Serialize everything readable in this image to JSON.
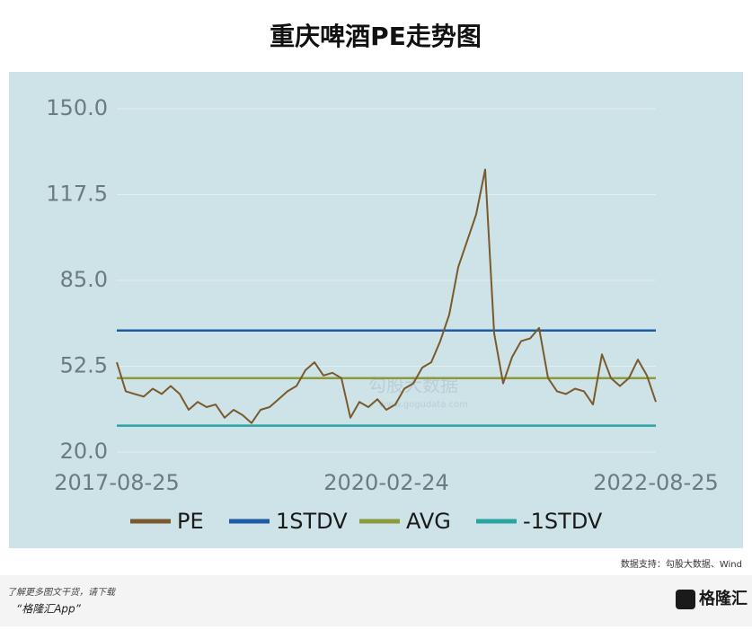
{
  "chart_data": {
    "type": "line",
    "title": "重庆啤酒PE走势图",
    "categories": [
      "2017-08-25",
      null,
      null,
      null,
      null,
      null,
      null,
      null,
      null,
      null,
      null,
      null,
      null,
      null,
      null,
      null,
      null,
      null,
      null,
      null,
      null,
      null,
      null,
      null,
      null,
      null,
      null,
      null,
      null,
      null,
      "2020-02-24",
      null,
      null,
      null,
      null,
      null,
      null,
      null,
      null,
      null,
      null,
      null,
      null,
      null,
      null,
      null,
      null,
      null,
      null,
      null,
      null,
      null,
      null,
      null,
      null,
      null,
      null,
      null,
      null,
      null,
      "2022-08-25"
    ],
    "series": [
      {
        "name": "PE",
        "color": "#7a5a2c",
        "values": [
          54,
          43,
          42,
          41,
          44,
          42,
          45,
          42,
          36,
          39,
          37,
          38,
          33,
          36,
          34,
          31,
          36,
          37,
          40,
          43,
          45,
          51,
          54,
          49,
          50,
          48,
          33,
          39,
          37,
          40,
          36,
          38,
          44,
          46,
          52,
          54,
          62,
          72,
          90,
          100,
          110,
          127,
          65,
          46,
          56,
          62,
          63,
          67,
          48,
          43,
          42,
          44,
          43,
          38,
          57,
          48,
          45,
          48,
          55,
          49,
          39
        ]
      },
      {
        "name": "1STDV",
        "color": "#1f5aa6",
        "values": [
          66,
          66,
          66,
          66,
          66,
          66,
          66,
          66,
          66,
          66,
          66,
          66,
          66,
          66,
          66,
          66,
          66,
          66,
          66,
          66,
          66,
          66,
          66,
          66,
          66,
          66,
          66,
          66,
          66,
          66,
          66,
          66,
          66,
          66,
          66,
          66,
          66,
          66,
          66,
          66,
          66,
          66,
          66,
          66,
          66,
          66,
          66,
          66,
          66,
          66,
          66,
          66,
          66,
          66,
          66,
          66,
          66,
          66,
          66,
          66,
          66
        ]
      },
      {
        "name": "AVG",
        "color": "#8a9a3c",
        "values": [
          48,
          48,
          48,
          48,
          48,
          48,
          48,
          48,
          48,
          48,
          48,
          48,
          48,
          48,
          48,
          48,
          48,
          48,
          48,
          48,
          48,
          48,
          48,
          48,
          48,
          48,
          48,
          48,
          48,
          48,
          48,
          48,
          48,
          48,
          48,
          48,
          48,
          48,
          48,
          48,
          48,
          48,
          48,
          48,
          48,
          48,
          48,
          48,
          48,
          48,
          48,
          48,
          48,
          48,
          48,
          48,
          48,
          48,
          48,
          48,
          48
        ]
      },
      {
        "name": "-1STDV",
        "color": "#2aa3a3",
        "values": [
          30,
          30,
          30,
          30,
          30,
          30,
          30,
          30,
          30,
          30,
          30,
          30,
          30,
          30,
          30,
          30,
          30,
          30,
          30,
          30,
          30,
          30,
          30,
          30,
          30,
          30,
          30,
          30,
          30,
          30,
          30,
          30,
          30,
          30,
          30,
          30,
          30,
          30,
          30,
          30,
          30,
          30,
          30,
          30,
          30,
          30,
          30,
          30,
          30,
          30,
          30,
          30,
          30,
          30,
          30,
          30,
          30,
          30,
          30,
          30,
          30
        ]
      }
    ],
    "ylim": [
      20,
      150
    ],
    "yticks": [
      {
        "value": 20,
        "label": "20.0"
      },
      {
        "value": 52.5,
        "label": "52.5"
      },
      {
        "value": 85,
        "label": "85.0"
      },
      {
        "value": 117.5,
        "label": "117.5"
      },
      {
        "value": 150,
        "label": "150.0"
      }
    ],
    "grid": true,
    "legend": "bottom",
    "watermark": [
      "勾股大数据",
      "www.gogudata.com"
    ],
    "source": "数据支持：勾股大数据、Wind"
  },
  "footer": {
    "line1": "了解更多图文干货，请下载",
    "line2": "“格隆汇App”",
    "logo": "格隆汇"
  }
}
